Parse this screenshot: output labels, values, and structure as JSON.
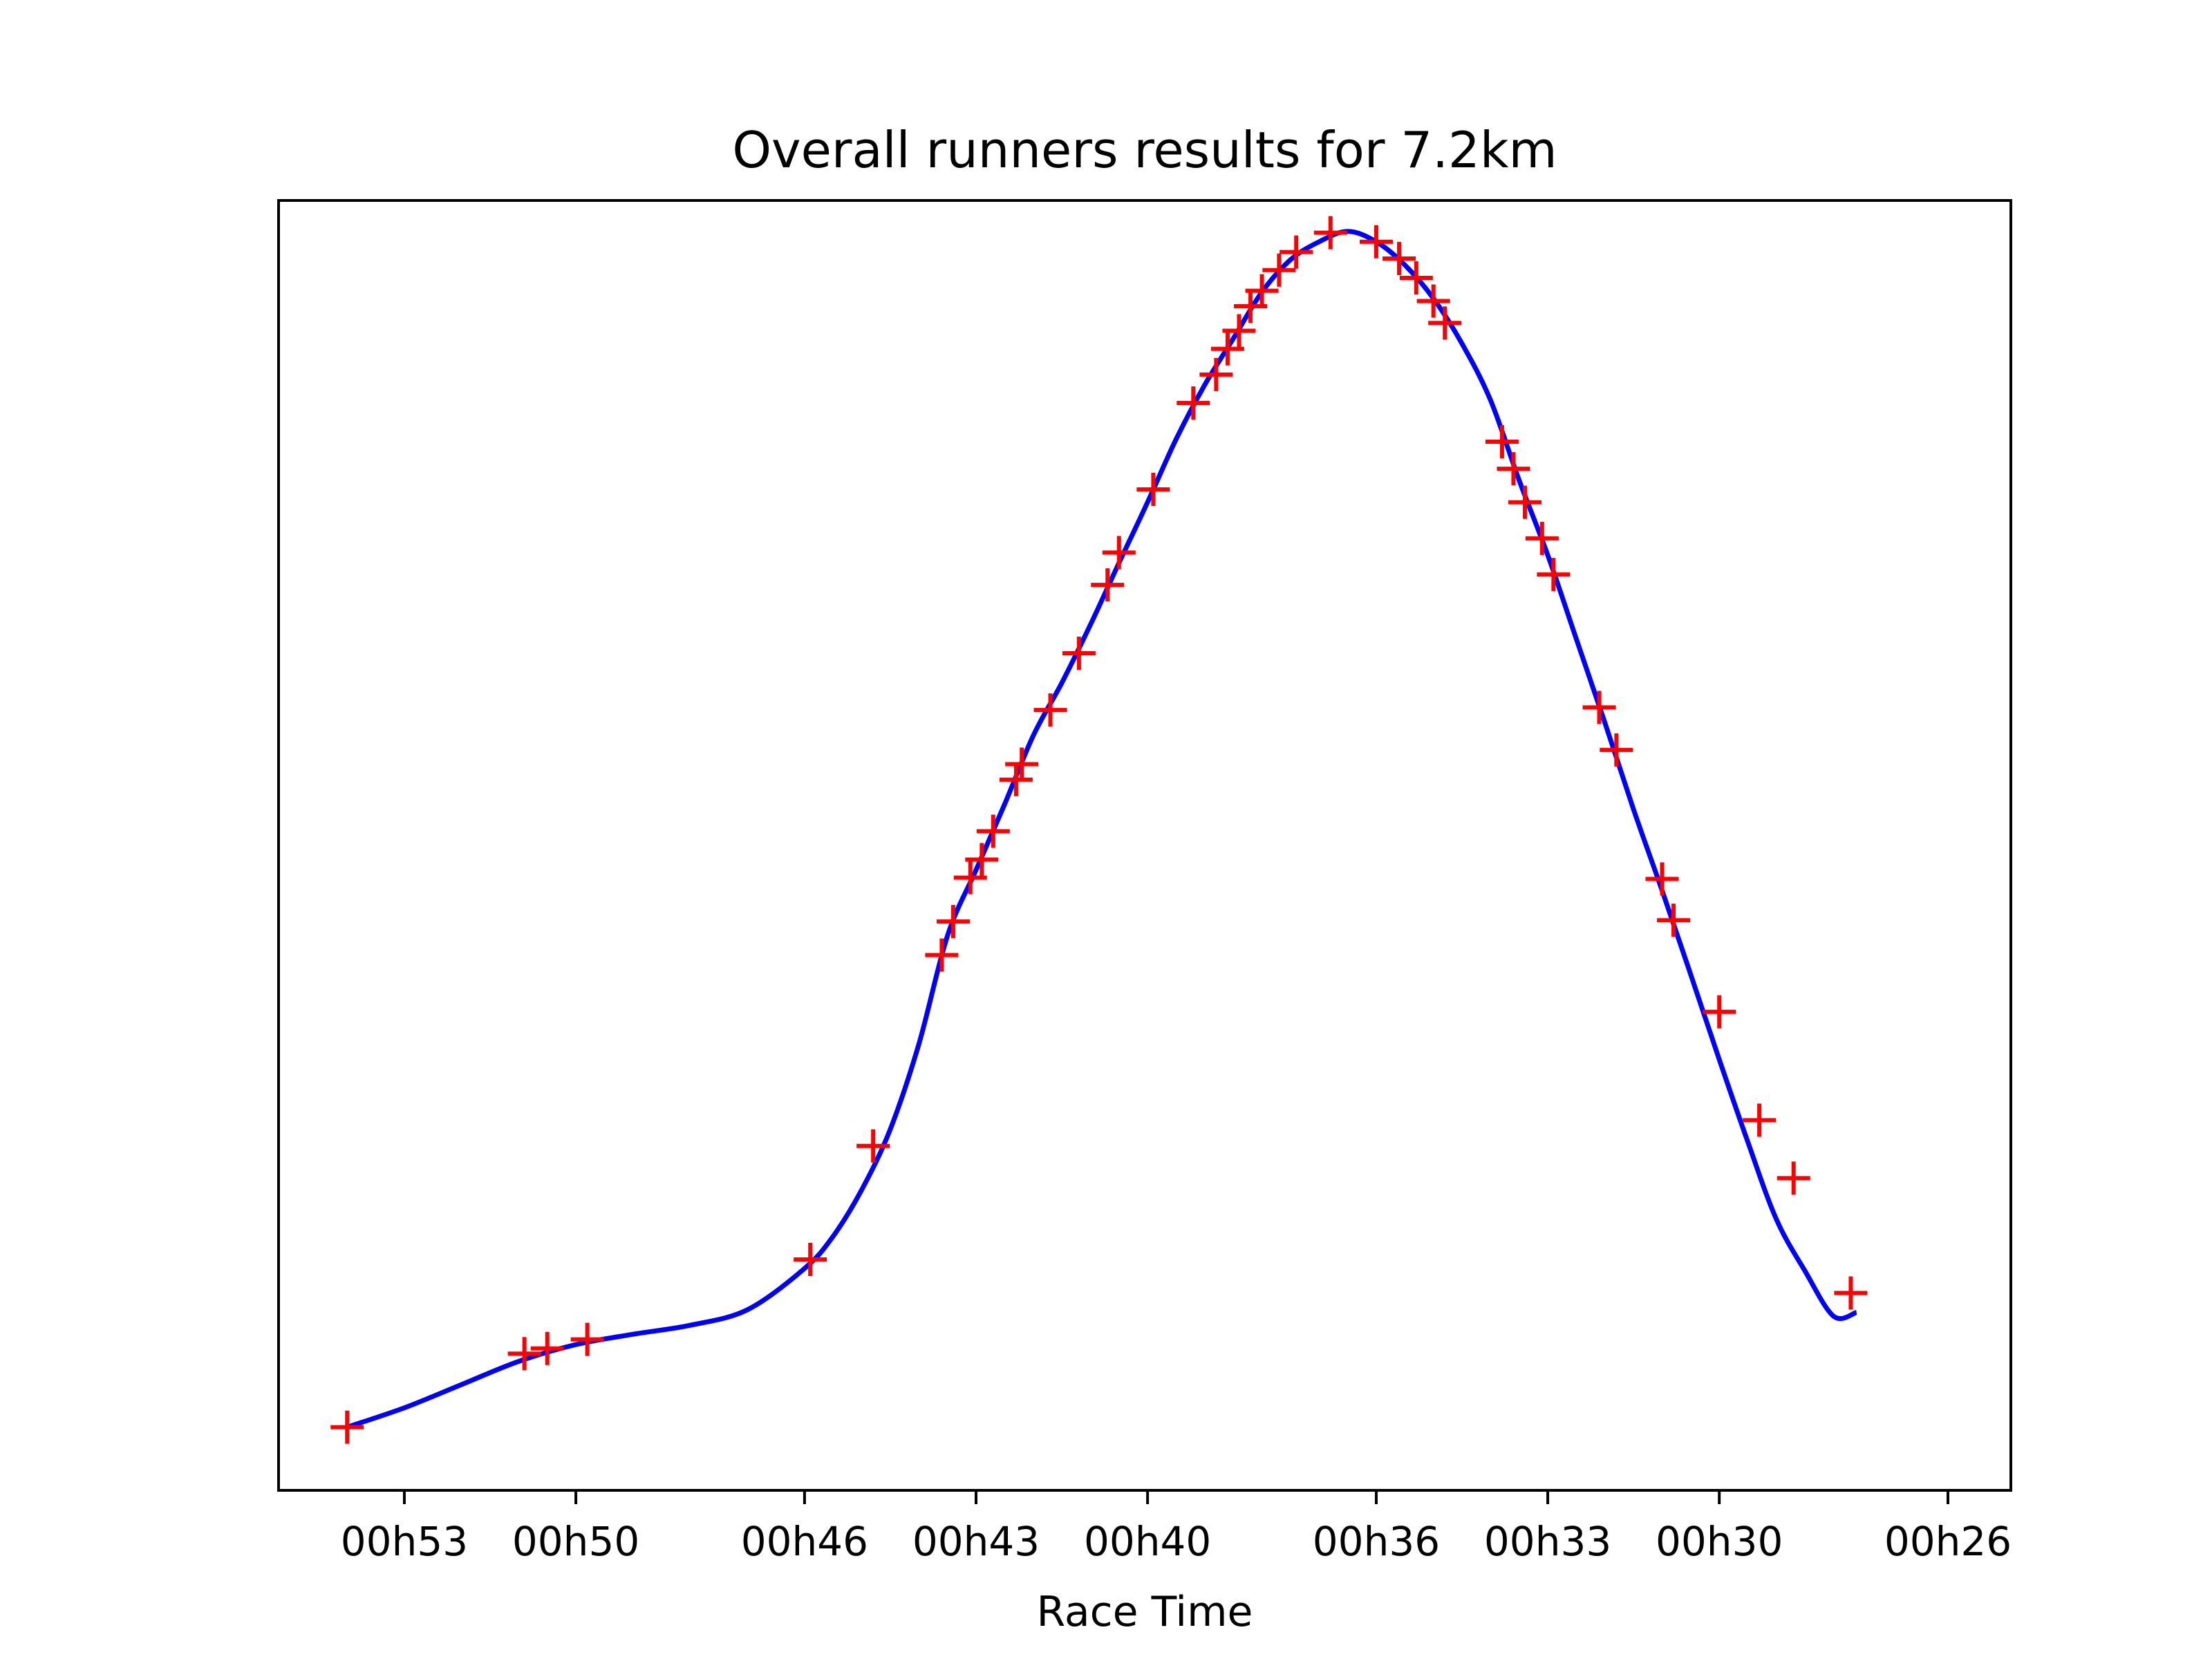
{
  "chart_data": {
    "type": "line",
    "title": "Overall runners results for 7.2km",
    "xlabel": "Race Time",
    "ylabel": "",
    "x_unit": "minutes",
    "x_axis_reversed": true,
    "xlim": [
      55.2,
      24.9
    ],
    "ylim": [
      0,
      1
    ],
    "y_ticks_visible": false,
    "grid": false,
    "legend": false,
    "x_ticks": [
      {
        "value": 53,
        "label": "00h53"
      },
      {
        "value": 50,
        "label": "00h50"
      },
      {
        "value": 46,
        "label": "00h46"
      },
      {
        "value": 43,
        "label": "00h43"
      },
      {
        "value": 40,
        "label": "00h40"
      },
      {
        "value": 36,
        "label": "00h36"
      },
      {
        "value": 33,
        "label": "00h33"
      },
      {
        "value": 30,
        "label": "00h30"
      },
      {
        "value": 26,
        "label": "00h26"
      }
    ],
    "series": [
      {
        "kind": "points",
        "marker": "+",
        "color": "#ff0000",
        "points": [
          [
            54.0,
            0.049
          ],
          [
            50.9,
            0.106
          ],
          [
            50.5,
            0.11
          ],
          [
            49.8,
            0.117
          ],
          [
            45.9,
            0.179
          ],
          [
            44.8,
            0.267
          ],
          [
            43.6,
            0.415
          ],
          [
            43.4,
            0.441
          ],
          [
            43.1,
            0.475
          ],
          [
            42.9,
            0.489
          ],
          [
            42.7,
            0.511
          ],
          [
            42.3,
            0.551
          ],
          [
            42.2,
            0.563
          ],
          [
            41.7,
            0.605
          ],
          [
            41.2,
            0.649
          ],
          [
            40.7,
            0.702
          ],
          [
            40.5,
            0.727
          ],
          [
            39.9,
            0.776
          ],
          [
            39.2,
            0.843
          ],
          [
            38.8,
            0.865
          ],
          [
            38.6,
            0.885
          ],
          [
            38.4,
            0.899
          ],
          [
            38.2,
            0.918
          ],
          [
            38.0,
            0.93
          ],
          [
            37.7,
            0.946
          ],
          [
            37.4,
            0.96
          ],
          [
            36.8,
            0.975
          ],
          [
            36.0,
            0.968
          ],
          [
            35.6,
            0.955
          ],
          [
            35.3,
            0.94
          ],
          [
            35.0,
            0.922
          ],
          [
            34.8,
            0.905
          ],
          [
            33.8,
            0.813
          ],
          [
            33.6,
            0.792
          ],
          [
            33.4,
            0.766
          ],
          [
            33.1,
            0.738
          ],
          [
            32.9,
            0.71
          ],
          [
            32.1,
            0.607
          ],
          [
            31.8,
            0.574
          ],
          [
            31.0,
            0.474
          ],
          [
            30.8,
            0.442
          ],
          [
            30.0,
            0.371
          ],
          [
            29.3,
            0.287
          ],
          [
            28.7,
            0.242
          ],
          [
            27.7,
            0.153
          ]
        ]
      },
      {
        "kind": "curve",
        "color": "#0000ff",
        "points": [
          [
            54.0,
            0.049
          ],
          [
            53.0,
            0.064
          ],
          [
            52.0,
            0.082
          ],
          [
            51.0,
            0.1
          ],
          [
            50.0,
            0.113
          ],
          [
            49.0,
            0.121
          ],
          [
            48.0,
            0.128
          ],
          [
            47.0,
            0.14
          ],
          [
            46.0,
            0.172
          ],
          [
            45.5,
            0.197
          ],
          [
            45.0,
            0.233
          ],
          [
            44.5,
            0.28
          ],
          [
            44.0,
            0.346
          ],
          [
            43.5,
            0.43
          ],
          [
            43.0,
            0.481
          ],
          [
            42.5,
            0.532
          ],
          [
            42.0,
            0.585
          ],
          [
            41.5,
            0.626
          ],
          [
            41.0,
            0.671
          ],
          [
            40.5,
            0.719
          ],
          [
            40.0,
            0.766
          ],
          [
            39.5,
            0.815
          ],
          [
            39.0,
            0.857
          ],
          [
            38.5,
            0.893
          ],
          [
            38.0,
            0.929
          ],
          [
            37.5,
            0.954
          ],
          [
            37.0,
            0.968
          ],
          [
            36.5,
            0.976
          ],
          [
            36.0,
            0.968
          ],
          [
            35.5,
            0.95
          ],
          [
            35.0,
            0.924
          ],
          [
            34.5,
            0.889
          ],
          [
            34.0,
            0.845
          ],
          [
            33.5,
            0.783
          ],
          [
            33.0,
            0.725
          ],
          [
            32.5,
            0.66
          ],
          [
            32.0,
            0.595
          ],
          [
            31.5,
            0.528
          ],
          [
            31.0,
            0.465
          ],
          [
            30.5,
            0.4
          ],
          [
            30.0,
            0.334
          ],
          [
            29.5,
            0.27
          ],
          [
            29.0,
            0.21
          ],
          [
            28.5,
            0.17
          ],
          [
            28.0,
            0.135
          ],
          [
            27.6,
            0.138
          ]
        ]
      }
    ]
  }
}
